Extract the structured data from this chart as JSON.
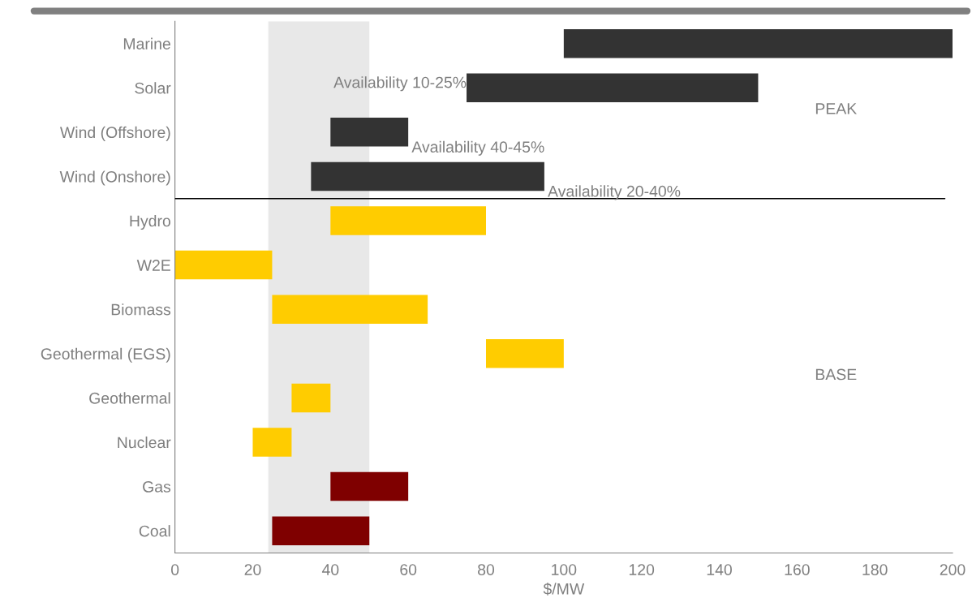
{
  "chart_data": {
    "type": "bar",
    "orientation": "horizontal",
    "xlabel": "$/MW",
    "categories": [
      "Marine",
      "Solar",
      "Wind (Offshore)",
      "Wind (Onshore)",
      "Hydro",
      "W2E",
      "Biomass",
      "Geothermal (EGS)",
      "Geothermal",
      "Nuclear",
      "Gas",
      "Coal"
    ],
    "base": [
      100,
      75,
      40,
      35,
      40,
      0,
      25,
      80,
      30,
      20,
      40,
      25
    ],
    "values": [
      100,
      75,
      20,
      60,
      40,
      25,
      40,
      20,
      10,
      10,
      20,
      25
    ],
    "colors": [
      "#333333",
      "#333333",
      "#333333",
      "#333333",
      "#ffcc00",
      "#ffcc00",
      "#ffcc00",
      "#ffcc00",
      "#ffcc00",
      "#ffcc00",
      "#7f0000",
      "#7f0000"
    ],
    "xlim": [
      0,
      200
    ],
    "xticks": [
      0,
      20,
      40,
      60,
      80,
      100,
      120,
      140,
      160,
      180,
      200
    ],
    "bands": [
      {
        "axis": "x",
        "from": 24,
        "to": 50,
        "color": "#d9d9d9"
      }
    ],
    "annotations": [
      {
        "text": "Availability 10-25%",
        "x": 75,
        "y": "Solar"
      },
      {
        "text": "Availability 40-45%",
        "x": 60,
        "y": "Wind (Offshore)"
      },
      {
        "text": "Availability 20-40%",
        "x": 95,
        "y": "Wind (Onshore)"
      },
      "PEAK",
      "BASE"
    ],
    "grid": false,
    "legend": false
  }
}
